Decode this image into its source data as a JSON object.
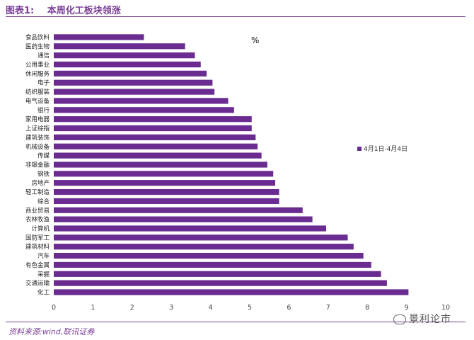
{
  "header": {
    "fig_no": "图表1:",
    "title": "本周化工板块领涨"
  },
  "footer": {
    "source": "资料来源:wind,联讯证券",
    "watermark": "景利论市"
  },
  "chart_data": {
    "type": "bar",
    "orientation": "horizontal",
    "unit_label": "%",
    "categories": [
      "食品饮料",
      "医药生物",
      "通信",
      "公用事业",
      "休闲服务",
      "电子",
      "纺织服装",
      "电气设备",
      "银行",
      "家用电器",
      "上证综指",
      "建筑装饰",
      "机械设备",
      "传媒",
      "非银金融",
      "钢铁",
      "房地产",
      "轻工制造",
      "综合",
      "商业贸易",
      "农林牧渔",
      "计算机",
      "国防军工",
      "建筑材料",
      "汽车",
      "有色金属",
      "采掘",
      "交通运输",
      "化工"
    ],
    "series": [
      {
        "name": "4月1日-4月4日",
        "values": [
          2.3,
          3.35,
          3.6,
          3.75,
          3.9,
          4.05,
          4.1,
          4.45,
          4.6,
          5.05,
          5.05,
          5.15,
          5.2,
          5.3,
          5.45,
          5.6,
          5.65,
          5.75,
          5.75,
          6.35,
          6.6,
          6.95,
          7.5,
          7.65,
          7.9,
          8.1,
          8.35,
          8.5,
          9.05
        ]
      }
    ],
    "xlim": [
      0,
      10
    ],
    "xticks": [
      0,
      1,
      2,
      3,
      4,
      5,
      6,
      7,
      8,
      9,
      10
    ],
    "bar_color": "#6a2c91",
    "grid": false,
    "legend": "right"
  }
}
